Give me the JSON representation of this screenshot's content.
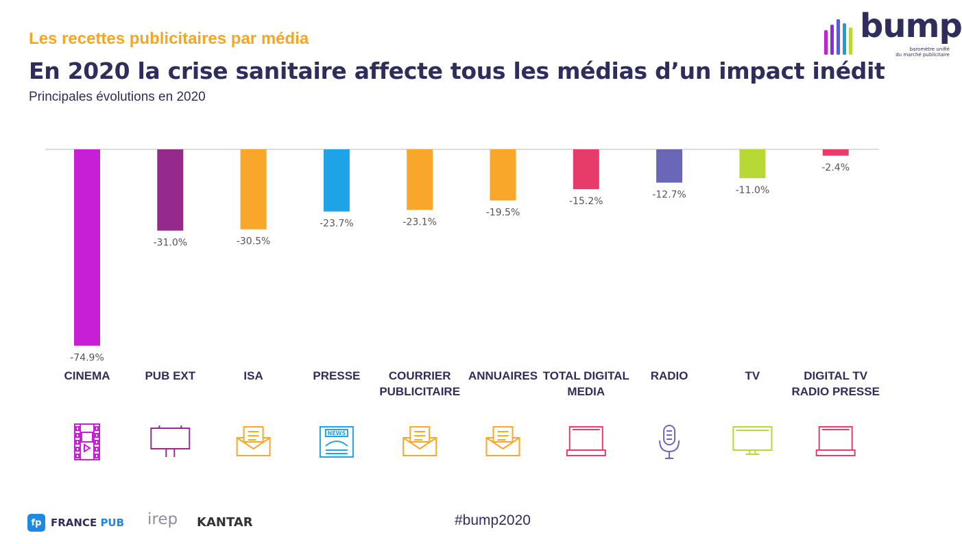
{
  "header": {
    "kicker": "Les recettes publicitaires par média",
    "headline": "En 2020 la crise sanitaire affecte tous les médias d’un impact inédit",
    "subtitle": "Principales évolutions en 2020"
  },
  "logo": {
    "brand": "bump",
    "tagline_1": "baromètre unifié",
    "tagline_2": "du marché publicitaire",
    "bar_colors": [
      "#c71fd6",
      "#8a2be2",
      "#5b5bd6",
      "#1e9be0",
      "#b8d935"
    ]
  },
  "footer": {
    "francepub_prefix": "FRANCE ",
    "francepub_suffix": "PUB",
    "francepub_badge": "fp",
    "irep": "irep",
    "kantar": "KANTAR",
    "hashtag": "#bump2020"
  },
  "chart_data": {
    "type": "bar",
    "categories": [
      [
        "CINEMA"
      ],
      [
        "PUB EXT"
      ],
      [
        "ISA"
      ],
      [
        "PRESSE"
      ],
      [
        "COURRIER",
        "PUBLICITAIRE"
      ],
      [
        "ANNUAIRES"
      ],
      [
        "TOTAL DIGITAL",
        "MEDIA"
      ],
      [
        "RADIO"
      ],
      [
        "TV"
      ],
      [
        "DIGITAL TV",
        "RADIO PRESSE"
      ]
    ],
    "values": [
      -74.9,
      -31.0,
      -30.5,
      -23.7,
      -23.1,
      -19.5,
      -15.2,
      -12.7,
      -11.0,
      -2.4
    ],
    "labels": [
      "-74.9%",
      "-31.0%",
      "-30.5%",
      "-23.7%",
      "-23.1%",
      "-19.5%",
      "-15.2%",
      "-12.7%",
      "-11.0%",
      "-2.4%"
    ],
    "colors": [
      "#c71fd6",
      "#952a8c",
      "#f9a72b",
      "#1ea4e6",
      "#f9a72b",
      "#f9a72b",
      "#e73b6c",
      "#6b67b8",
      "#b8d935",
      "#e73b6c"
    ],
    "icons": [
      "film-strip-icon",
      "billboard-icon",
      "mail-envelope-icon",
      "newspaper-icon",
      "mail-envelope-icon",
      "mail-envelope-icon",
      "laptop-icon",
      "microphone-icon",
      "tv-screen-icon",
      "laptop-icon"
    ],
    "icon_colors": [
      "#c71fd6",
      "#952a8c",
      "#f9a72b",
      "#1ea4e6",
      "#f9a72b",
      "#f9a72b",
      "#e73b6c",
      "#6b67b8",
      "#b8d935",
      "#e73b6c"
    ],
    "newspaper_icon_text": "NEWS",
    "ylim": [
      -75,
      0
    ],
    "grid": false,
    "legend": "none"
  }
}
